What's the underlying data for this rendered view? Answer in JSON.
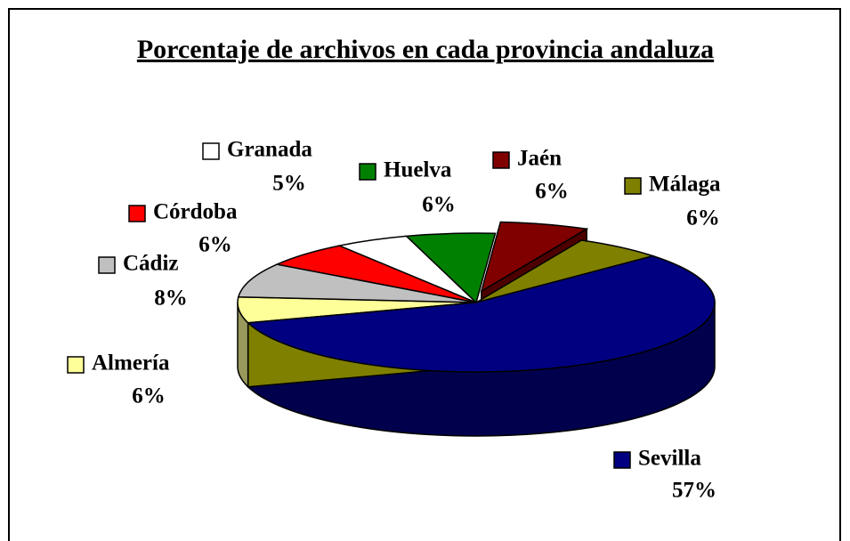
{
  "chart_data": {
    "type": "pie",
    "title": "Porcentaje de archivos en cada provincia andaluza",
    "categories": [
      "Almería",
      "Cádiz",
      "Córdoba",
      "Granada",
      "Huelva",
      "Jaén",
      "Málaga",
      "Sevilla"
    ],
    "values": [
      6,
      8,
      6,
      5,
      6,
      6,
      6,
      57
    ],
    "value_labels": [
      "6%",
      "8%",
      "6%",
      "5%",
      "6%",
      "6%",
      "6%",
      "57%"
    ],
    "colors": [
      "#ffff99",
      "#c0c0c0",
      "#ff0000",
      "#ffffff",
      "#008000",
      "#800000",
      "#808000",
      "#000080"
    ]
  }
}
